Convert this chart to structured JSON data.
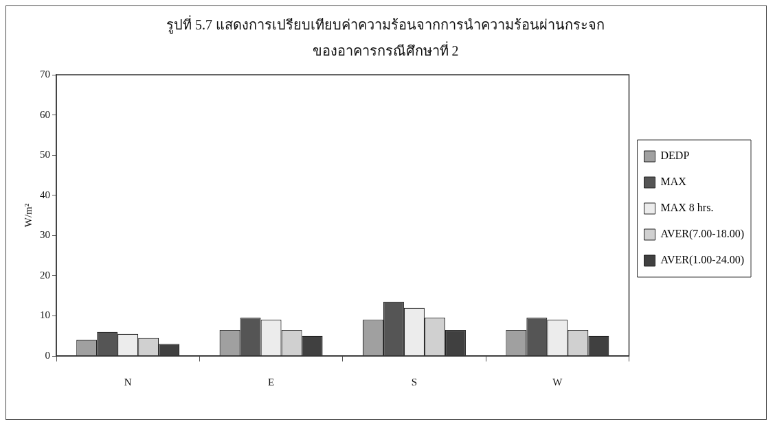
{
  "chart_data": {
    "type": "bar",
    "title": "รูปที่ 5.7 แสดงการเปรียบเทียบค่าความร้อนจากการนำความร้อนผ่านกระจก\nของอาคารกรณีศึกษาที่ 2",
    "ylabel": "W/m²",
    "categories": [
      "N",
      "E",
      "S",
      "W"
    ],
    "series": [
      {
        "name": "DEDP",
        "color": "#a0a0a0",
        "values": [
          4,
          6.5,
          9,
          6.5
        ]
      },
      {
        "name": "MAX",
        "color": "#555555",
        "values": [
          6,
          9.5,
          13.5,
          9.5
        ]
      },
      {
        "name": "MAX 8 hrs.",
        "color": "#ececec",
        "values": [
          5.5,
          9,
          12,
          9
        ]
      },
      {
        "name": "AVER(7.00-18.00)",
        "color": "#d0d0d0",
        "values": [
          4.5,
          6.5,
          9.5,
          6.5
        ]
      },
      {
        "name": "AVER(1.00-24.00)",
        "color": "#404040",
        "values": [
          3,
          5,
          6.5,
          5
        ]
      }
    ],
    "ylim": [
      0,
      70
    ],
    "yticks": [
      0,
      10,
      20,
      30,
      40,
      50,
      60,
      70
    ],
    "grid": false,
    "legend": "right"
  }
}
